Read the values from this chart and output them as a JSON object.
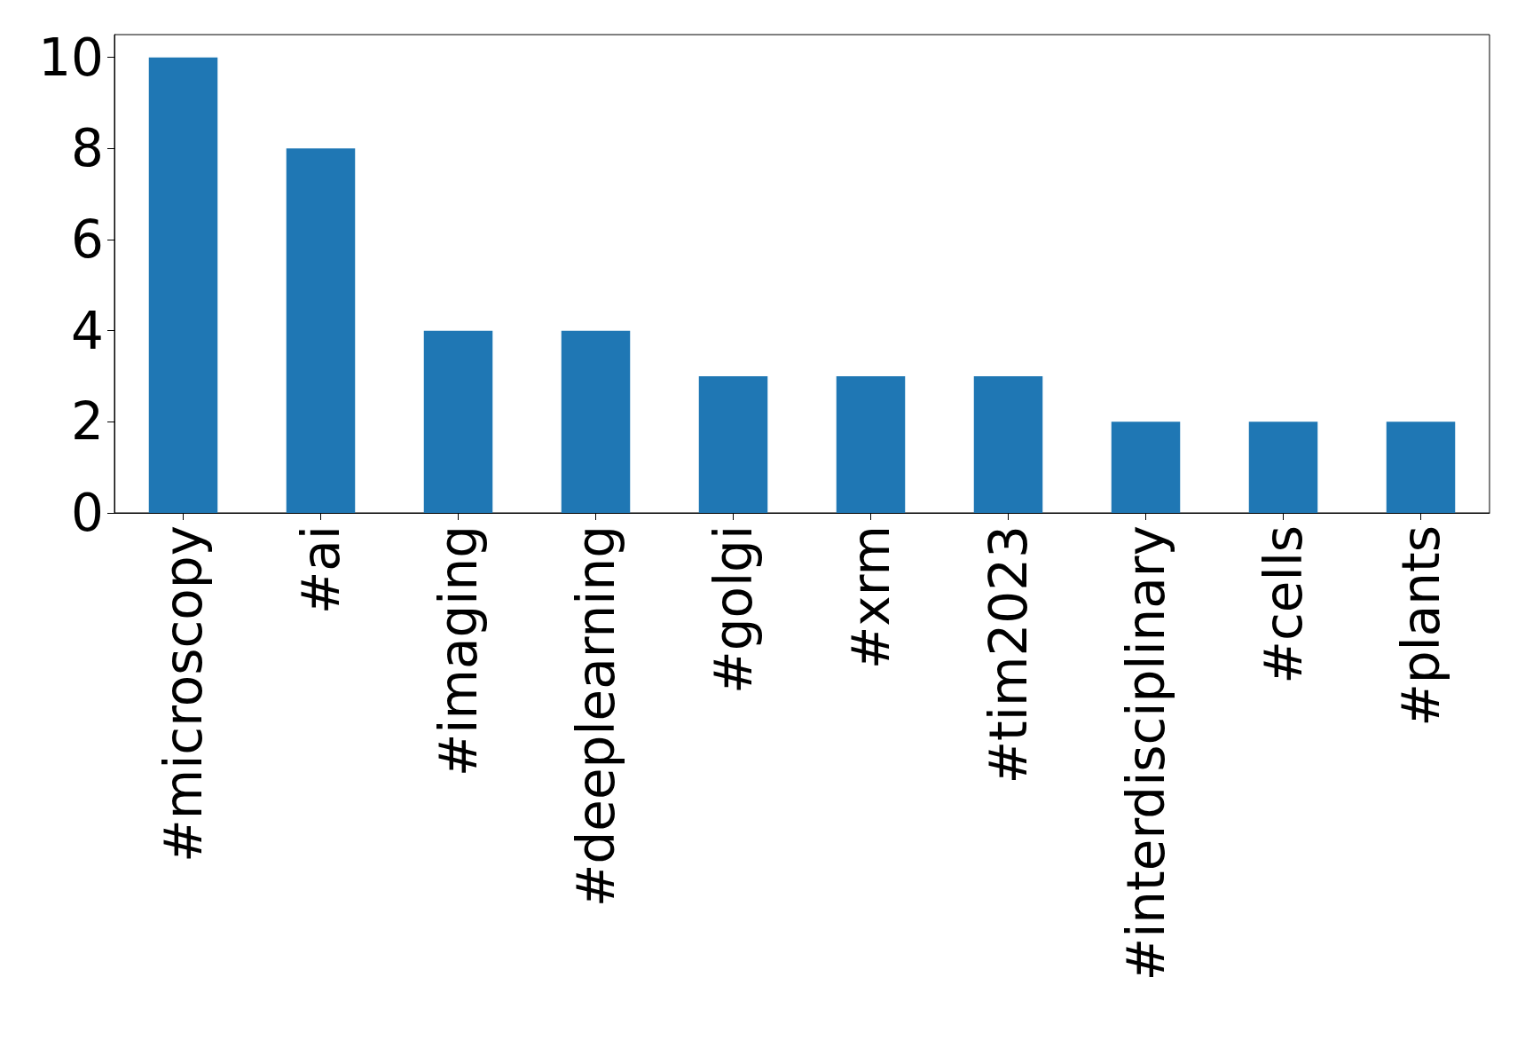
{
  "chart_data": {
    "type": "bar",
    "categories": [
      "#microscopy",
      "#ai",
      "#imaging",
      "#deeplearning",
      "#golgi",
      "#xrm",
      "#tim2023",
      "#interdisciplinary",
      "#cells",
      "#plants"
    ],
    "values": [
      10,
      8,
      4,
      4,
      3,
      3,
      3,
      2,
      2,
      2
    ],
    "color": "#1f77b4",
    "ylim": [
      0,
      10.5
    ],
    "yticks": [
      0,
      2,
      4,
      6,
      8,
      10
    ],
    "grid": false
  }
}
